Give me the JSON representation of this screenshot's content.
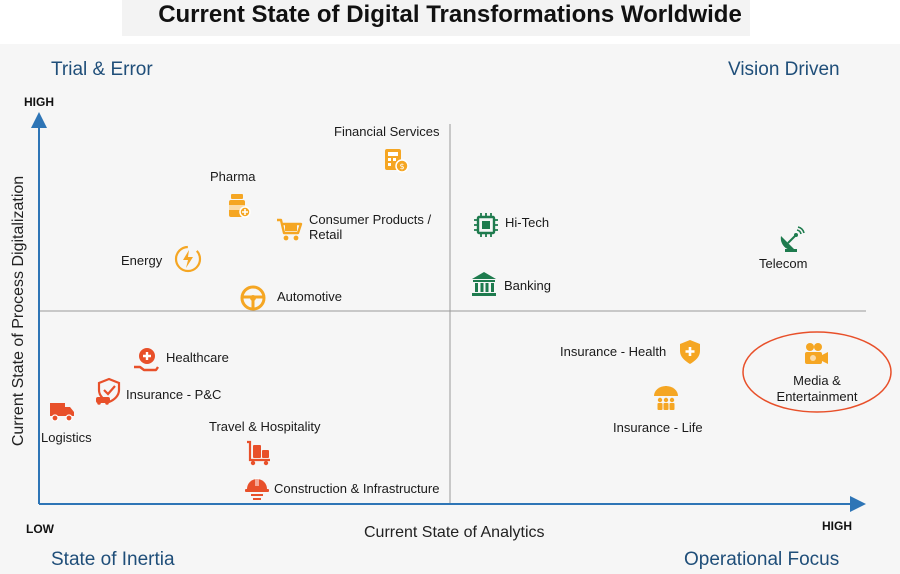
{
  "title": "Current State of Digital Transformations Worldwide",
  "quadrants": {
    "top_left": "Trial & Error",
    "top_right": "Vision Driven",
    "bottom_left": "State of Inertia",
    "bottom_right": "Operational Focus"
  },
  "axes": {
    "x_title": "Current State of Analytics",
    "y_title": "Current State of Process Digitalization",
    "y_high": "HIGH",
    "x_low": "LOW",
    "x_high": "HIGH"
  },
  "colors": {
    "navy": "#1f4e79",
    "axis_blue": "#2e75b6",
    "orange": "#f5a623",
    "red_orange": "#e8502a",
    "green": "#1e7b4e",
    "highlight_ring": "#e8502a"
  },
  "items": {
    "financial_services": {
      "label": "Financial Services",
      "icon": "calculator-icon"
    },
    "pharma": {
      "label": "Pharma",
      "icon": "pill-bottle-icon"
    },
    "consumer_products": {
      "label_line1": "Consumer Products /",
      "label_line2": "Retail",
      "icon": "shopping-cart-icon"
    },
    "energy": {
      "label": "Energy",
      "icon": "lightning-icon"
    },
    "automotive": {
      "label": "Automotive",
      "icon": "steering-wheel-icon"
    },
    "hi_tech": {
      "label": "Hi-Tech",
      "icon": "chip-icon"
    },
    "banking": {
      "label": "Banking",
      "icon": "bank-icon"
    },
    "telecom": {
      "label": "Telecom",
      "icon": "satellite-dish-icon"
    },
    "healthcare": {
      "label": "Healthcare",
      "icon": "medical-hand-icon"
    },
    "insurance_pc": {
      "label": "Insurance - P&C",
      "icon": "car-shield-icon"
    },
    "logistics": {
      "label": "Logistics",
      "icon": "truck-icon"
    },
    "travel": {
      "label": "Travel & Hospitality",
      "icon": "luggage-cart-icon"
    },
    "construction": {
      "label": "Construction & Infrastructure",
      "icon": "hard-hat-icon"
    },
    "insurance_health": {
      "label": "Insurance - Health",
      "icon": "health-shield-icon"
    },
    "insurance_life": {
      "label": "Insurance - Life",
      "icon": "umbrella-family-icon"
    },
    "media": {
      "label_line1": "Media &",
      "label_line2": "Entertainment",
      "icon": "video-camera-icon"
    }
  }
}
